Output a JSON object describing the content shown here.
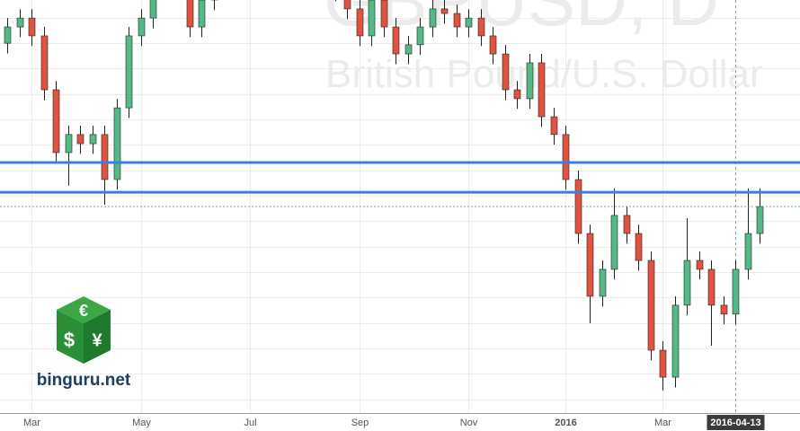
{
  "chart_data": {
    "type": "candlestick",
    "watermark": {
      "title": "GBPUSD, D",
      "subtitle": "British Pound/U.S. Dollar"
    },
    "categories": [
      null,
      null,
      "Mar",
      null,
      null,
      null,
      null,
      null,
      null,
      null,
      null,
      "May",
      null,
      null,
      null,
      null,
      null,
      null,
      null,
      null,
      "Jul",
      null,
      null,
      null,
      null,
      null,
      null,
      null,
      null,
      "Sep",
      null,
      null,
      null,
      null,
      null,
      null,
      null,
      null,
      "Nov",
      null,
      null,
      null,
      null,
      null,
      null,
      null,
      "2016",
      null,
      null,
      null,
      null,
      null,
      null,
      null,
      "Mar",
      null,
      null,
      null,
      null,
      null,
      "2016-04-13",
      null,
      null
    ],
    "open": [
      1.52,
      1.5264,
      1.5299,
      1.5229,
      1.5017,
      1.477,
      1.4841,
      1.4805,
      1.4841,
      1.4664,
      1.4946,
      1.5229,
      1.5299,
      1.5511,
      1.5652,
      1.5441,
      1.5264,
      1.537,
      1.5547,
      1.5652,
      1.5582,
      1.5511,
      1.5476,
      1.5582,
      1.5617,
      1.5582,
      1.5547,
      1.5476,
      1.5405,
      1.5335,
      1.5229,
      1.537,
      1.5264,
      1.5158,
      1.5194,
      1.5264,
      1.5335,
      1.5317,
      1.5264,
      1.5299,
      1.5229,
      1.5158,
      1.5017,
      1.4982,
      1.5123,
      1.4911,
      1.4841,
      1.4664,
      1.4452,
      1.4205,
      1.4311,
      1.4523,
      1.4452,
      1.4346,
      1.3993,
      1.3887,
      1.417,
      1.4346,
      1.4311,
      1.417,
      1.4135,
      1.4311,
      1.4452
    ],
    "high": [
      1.5299,
      1.5334,
      1.5334,
      1.5264,
      1.5052,
      1.4876,
      1.4876,
      1.4876,
      1.4876,
      1.4981,
      1.5264,
      1.5334,
      1.5546,
      1.5687,
      1.5687,
      1.5476,
      1.5405,
      1.5582,
      1.5687,
      1.5687,
      1.5617,
      1.5546,
      1.5617,
      1.5652,
      1.5652,
      1.5617,
      1.5582,
      1.5511,
      1.544,
      1.537,
      1.5405,
      1.5405,
      1.5299,
      1.5229,
      1.5299,
      1.537,
      1.537,
      1.5352,
      1.5334,
      1.5334,
      1.5264,
      1.5193,
      1.5052,
      1.5158,
      1.5158,
      1.4946,
      1.4876,
      1.4699,
      1.4487,
      1.4346,
      1.4629,
      1.4558,
      1.4487,
      1.4381,
      1.4028,
      1.4205,
      1.4512,
      1.4381,
      1.4346,
      1.4205,
      1.4346,
      1.4629,
      1.4629
    ],
    "low": [
      1.516,
      1.5224,
      1.5189,
      1.4977,
      1.473,
      1.464,
      1.4765,
      1.4765,
      1.4565,
      1.4624,
      1.4906,
      1.5189,
      1.5259,
      1.5471,
      1.5401,
      1.5224,
      1.5224,
      1.533,
      1.5507,
      1.5542,
      1.5471,
      1.5436,
      1.5436,
      1.5542,
      1.5542,
      1.5507,
      1.5436,
      1.5365,
      1.5295,
      1.5189,
      1.5189,
      1.5224,
      1.5118,
      1.5118,
      1.5154,
      1.5224,
      1.5277,
      1.5224,
      1.5224,
      1.5189,
      1.5118,
      1.4977,
      1.4942,
      1.4942,
      1.4871,
      1.4801,
      1.4624,
      1.4412,
      1.4099,
      1.4165,
      1.4271,
      1.4412,
      1.4306,
      1.3953,
      1.3834,
      1.3847,
      1.413,
      1.4271,
      1.4011,
      1.4095,
      1.4095,
      1.4271,
      1.4412
    ],
    "close": [
      1.5264,
      1.5299,
      1.5229,
      1.5017,
      1.477,
      1.4841,
      1.4805,
      1.4841,
      1.4664,
      1.4946,
      1.5229,
      1.5299,
      1.5511,
      1.5652,
      1.5441,
      1.5264,
      1.537,
      1.5547,
      1.5652,
      1.5582,
      1.5511,
      1.5476,
      1.5582,
      1.5617,
      1.5582,
      1.5547,
      1.5476,
      1.5405,
      1.5335,
      1.5229,
      1.537,
      1.5264,
      1.5158,
      1.5194,
      1.5264,
      1.5335,
      1.5317,
      1.5264,
      1.5299,
      1.5229,
      1.5158,
      1.5017,
      1.4982,
      1.5123,
      1.4911,
      1.4841,
      1.4664,
      1.4452,
      1.4205,
      1.4311,
      1.4523,
      1.4452,
      1.4346,
      1.3993,
      1.3887,
      1.417,
      1.4346,
      1.4311,
      1.417,
      1.4135,
      1.4311,
      1.4452,
      1.4558
    ],
    "up_color": "#53b987",
    "down_color": "#e0533f",
    "wick_color": "#222222",
    "ylim": [
      1.3746,
      1.537
    ],
    "yticks": [
      1.38,
      1.39,
      1.4,
      1.41,
      1.42,
      1.43,
      1.44,
      1.45,
      1.46,
      1.47,
      1.48,
      1.49,
      1.5,
      1.51,
      1.52,
      1.53
    ],
    "grid": true,
    "hlines": [
      {
        "value": 1.4731,
        "color": "#3b7de3"
      },
      {
        "value": 1.4614,
        "color": "#3b7de3"
      }
    ],
    "last_price_line": {
      "color": "#3f9f6a"
    },
    "crosshair": true
  },
  "logo": {
    "text": "binguru.net",
    "symbols": [
      "€",
      "$",
      "¥"
    ]
  }
}
